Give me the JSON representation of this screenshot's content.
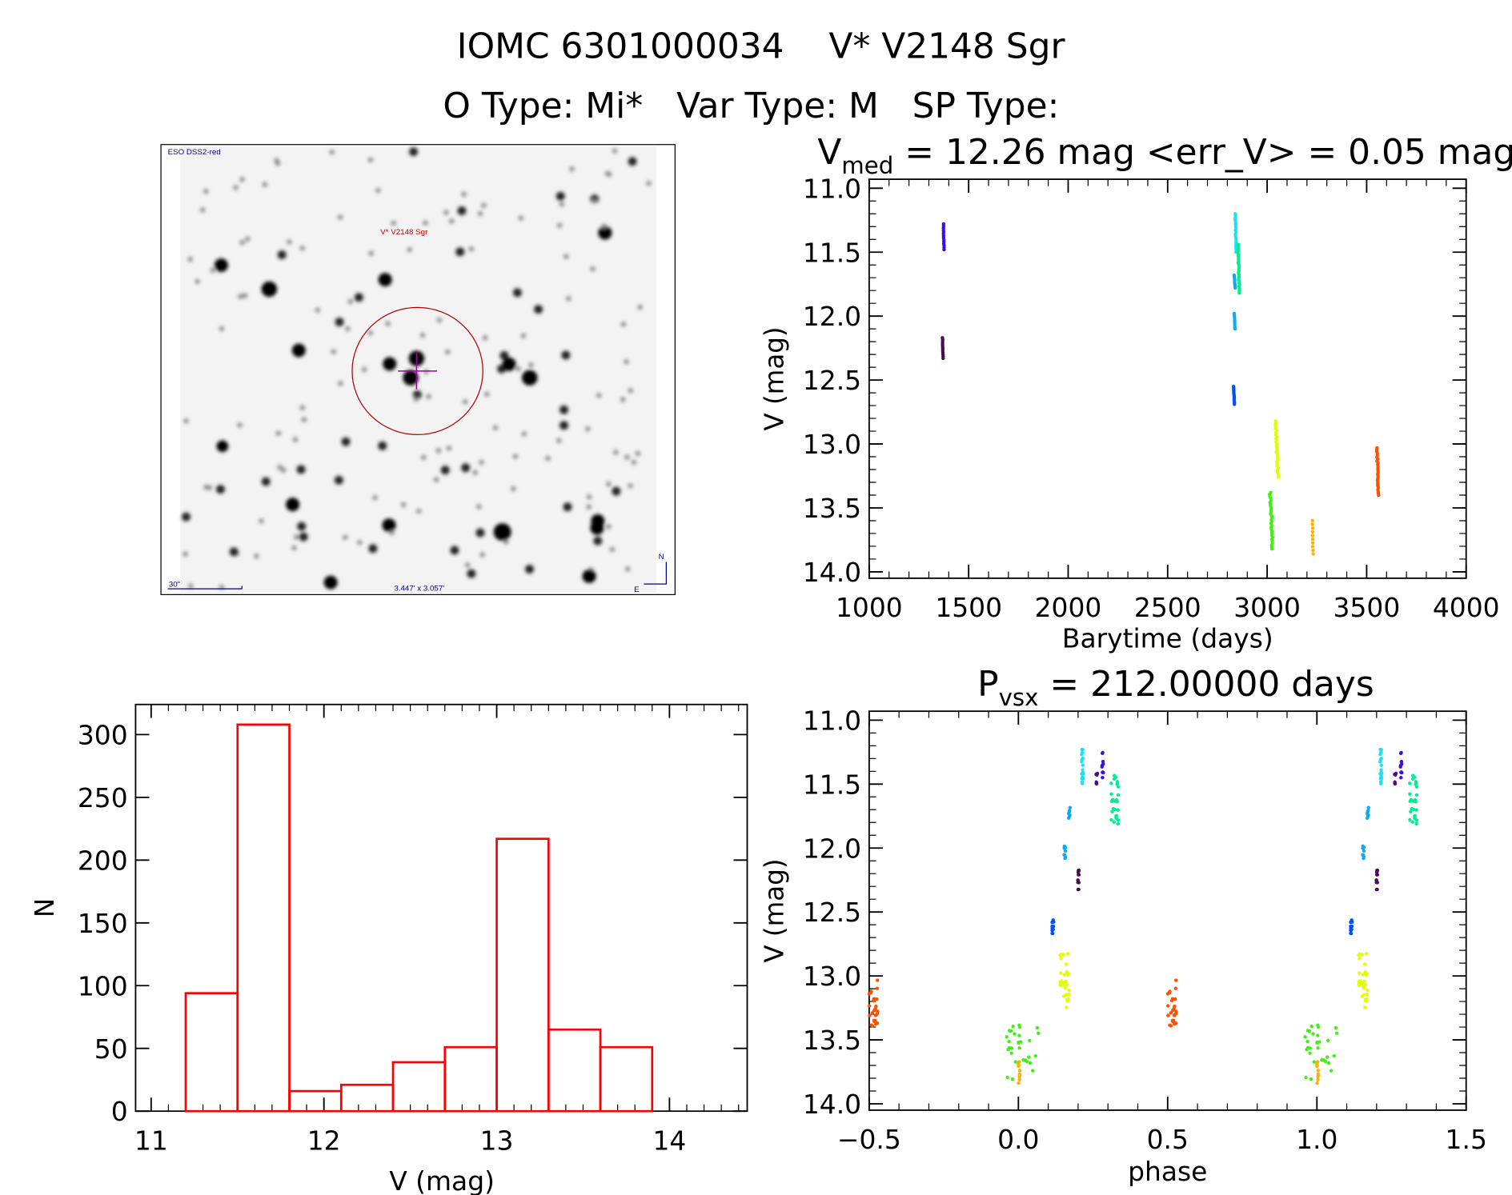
{
  "header": {
    "line1": "IOMC 6301000034    V* V2148 Sgr",
    "line2": "O Type: Mi*   Var Type: M   SP Type:"
  },
  "image_panel": {
    "survey": "ESO DSS2-red",
    "target": "V* V2148 Sgr",
    "scale": "30\"",
    "fov": "3.447' x 3.057'",
    "north": "N",
    "east": "E"
  },
  "chart_data": [
    {
      "type": "scatter",
      "id": "lightcurve",
      "title_main": "V",
      "title_sub": "med",
      "title_rest": " = 12.26 mag <err_V> = 0.05 mag",
      "xlabel": "Barytime (days)",
      "ylabel": "V (mag)",
      "xlim": [
        1000,
        4000
      ],
      "ylim": [
        14.05,
        10.93
      ],
      "xticks": [
        "1000",
        "1500",
        "2000",
        "2500",
        "3000",
        "3500",
        "4000"
      ],
      "yticks": [
        "11.0",
        "11.5",
        "12.0",
        "12.5",
        "13.0",
        "13.5",
        "14.0"
      ],
      "clusters": [
        {
          "x": [
            1372,
            1378
          ],
          "y": [
            11.28,
            11.48
          ],
          "color": "#3c10e0",
          "n": 14
        },
        {
          "x": [
            1368,
            1372
          ],
          "y": [
            12.17,
            12.33
          ],
          "color": "#4a0a5a",
          "n": 12
        },
        {
          "x": [
            2838,
            2846
          ],
          "y": [
            11.2,
            11.5
          ],
          "color": "#20e0f0",
          "n": 22
        },
        {
          "x": [
            2852,
            2862
          ],
          "y": [
            11.44,
            11.82
          ],
          "color": "#00ee90",
          "n": 30
        },
        {
          "x": [
            2834,
            2840
          ],
          "y": [
            11.68,
            11.78
          ],
          "color": "#10a8f0",
          "n": 8
        },
        {
          "x": [
            2834,
            2840
          ],
          "y": [
            11.98,
            12.1
          ],
          "color": "#10a8f0",
          "n": 8
        },
        {
          "x": [
            2830,
            2836
          ],
          "y": [
            12.55,
            12.69
          ],
          "color": "#0050ff",
          "n": 12
        },
        {
          "x": [
            3040,
            3058
          ],
          "y": [
            12.82,
            13.26
          ],
          "color": "#e0ff00",
          "n": 30
        },
        {
          "x": [
            3012,
            3030
          ],
          "y": [
            13.38,
            13.82
          ],
          "color": "#40f010",
          "n": 30
        },
        {
          "x": [
            3226,
            3232
          ],
          "y": [
            13.6,
            13.86
          ],
          "color": "#ffb000",
          "n": 10
        },
        {
          "x": [
            3550,
            3562
          ],
          "y": [
            13.03,
            13.4
          ],
          "color": "#ff5000",
          "n": 26
        }
      ]
    },
    {
      "type": "scatter",
      "id": "phased",
      "title_main": "P",
      "title_sub": "vsx",
      "title_rest": " = 212.00000 days",
      "xlabel": "phase",
      "ylabel": "V (mag)",
      "xlim": [
        -0.5,
        1.5
      ],
      "ylim": [
        14.05,
        10.93
      ],
      "xticks": [
        "−0.5",
        "0.0",
        "0.5",
        "1.0",
        "1.5"
      ],
      "yticks": [
        "11.0",
        "11.5",
        "12.0",
        "12.5",
        "13.0",
        "13.5",
        "14.0"
      ],
      "clusters": [
        {
          "x": [
            0.5,
            0.53
          ],
          "y": [
            13.03,
            13.4
          ],
          "color": "#ff5000",
          "n": 26
        },
        {
          "x": [
            -0.04,
            0.07
          ],
          "y": [
            13.38,
            13.82
          ],
          "color": "#40f010",
          "n": 30
        },
        {
          "x": [
            0.0,
            0.005
          ],
          "y": [
            13.6,
            13.86
          ],
          "color": "#ffb000",
          "n": 10
        },
        {
          "x": [
            0.14,
            0.17
          ],
          "y": [
            12.82,
            13.26
          ],
          "color": "#e0ff00",
          "n": 30
        },
        {
          "x": [
            0.113,
            0.118
          ],
          "y": [
            12.55,
            12.69
          ],
          "color": "#0050ff",
          "n": 12
        },
        {
          "x": [
            0.198,
            0.203
          ],
          "y": [
            12.17,
            12.33
          ],
          "color": "#4a0a5a",
          "n": 12
        },
        {
          "x": [
            0.153,
            0.158
          ],
          "y": [
            11.98,
            12.1
          ],
          "color": "#10a8f0",
          "n": 8
        },
        {
          "x": [
            0.168,
            0.173
          ],
          "y": [
            11.68,
            11.78
          ],
          "color": "#10a8f0",
          "n": 8
        },
        {
          "x": [
            0.212,
            0.217
          ],
          "y": [
            11.2,
            11.5
          ],
          "color": "#20e0f0",
          "n": 22
        },
        {
          "x": [
            0.26,
            0.265
          ],
          "y": [
            11.4,
            11.5
          ],
          "color": "#4a0a8a",
          "n": 6
        },
        {
          "x": [
            0.28,
            0.285
          ],
          "y": [
            11.25,
            11.47
          ],
          "color": "#3c10e0",
          "n": 10
        },
        {
          "x": [
            0.31,
            0.335
          ],
          "y": [
            11.42,
            11.82
          ],
          "color": "#00ee90",
          "n": 30
        }
      ]
    },
    {
      "type": "bar",
      "id": "histogram",
      "xlabel": "V (mag)",
      "ylabel": "N",
      "xlim": [
        10.91,
        14.45
      ],
      "ylim": [
        0,
        324
      ],
      "xticks": [
        "11",
        "12",
        "13",
        "14"
      ],
      "yticks": [
        "0",
        "50",
        "100",
        "150",
        "200",
        "250",
        "300"
      ],
      "bin_edges": [
        11.2,
        11.5,
        11.8,
        12.1,
        12.4,
        12.7,
        13.0,
        13.3,
        13.6,
        13.9
      ],
      "values": [
        94,
        308,
        16,
        21,
        39,
        51,
        217,
        65,
        51
      ],
      "color": "#ff0000"
    }
  ]
}
